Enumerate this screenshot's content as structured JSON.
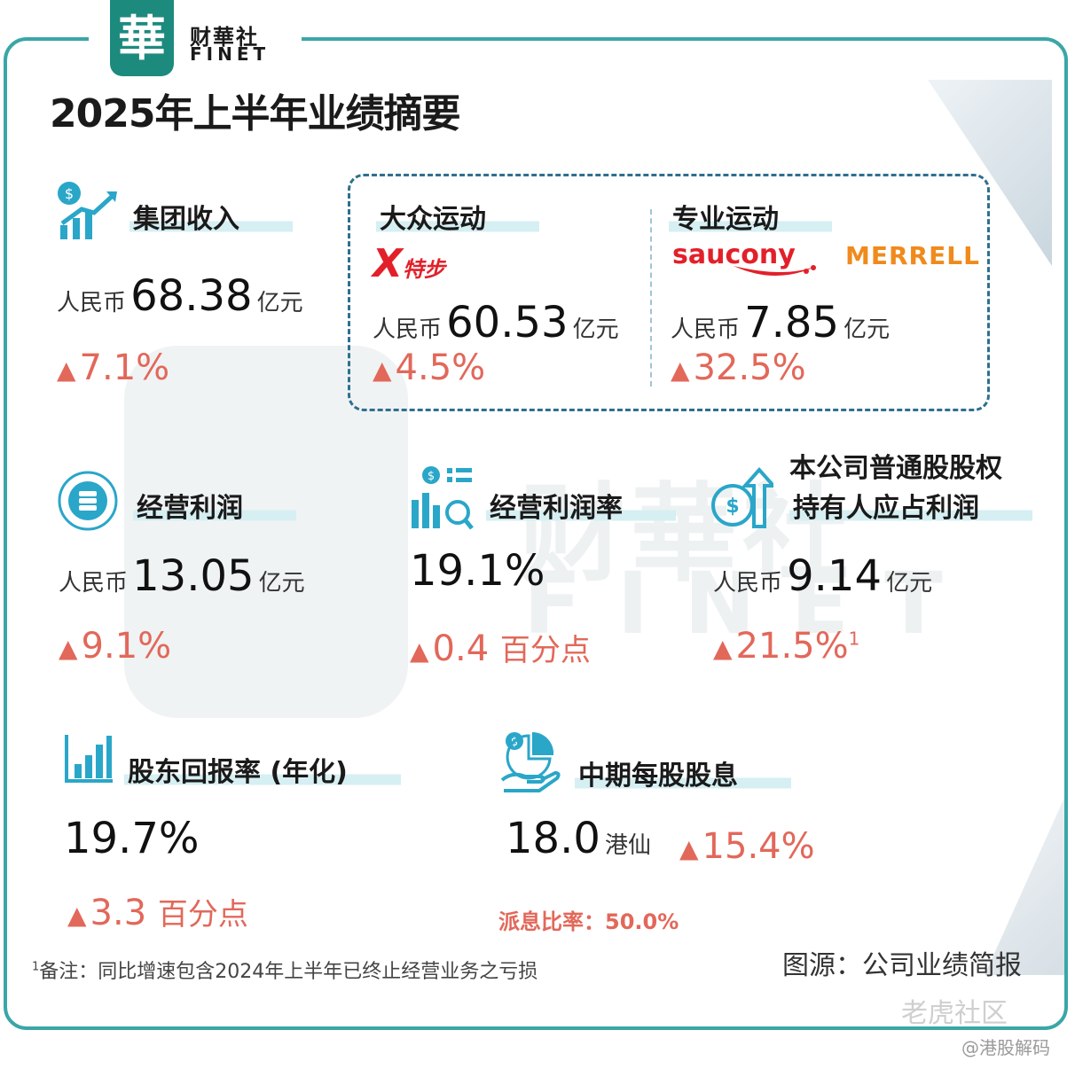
{
  "brand": {
    "logo_char": "華",
    "name_cn": "财華社",
    "name_en": "FINET"
  },
  "title": "2025年上半年业绩摘要",
  "revenue": {
    "heading": "集团收入",
    "prefix": "人民币",
    "value": "68.38",
    "unit": "亿元",
    "change": "7.1%"
  },
  "mass": {
    "heading": "大众运动",
    "brand_logo": "特步",
    "prefix": "人民币",
    "value": "60.53",
    "unit": "亿元",
    "change": "4.5%"
  },
  "pro": {
    "heading": "专业运动",
    "brand1": "saucony",
    "brand2": "MERRELL",
    "prefix": "人民币",
    "value": "7.85",
    "unit": "亿元",
    "change": "32.5%"
  },
  "op_profit": {
    "heading": "经营利润",
    "prefix": "人民币",
    "value": "13.05",
    "unit": "亿元",
    "change": "9.1%"
  },
  "op_margin": {
    "heading": "经营利润率",
    "value": "19.1%",
    "change": "0.4",
    "change_unit": "百分点"
  },
  "net_profit": {
    "heading_line1": "本公司普通股股权",
    "heading_line2": "持有人应占利润",
    "prefix": "人民币",
    "value": "9.14",
    "unit": "亿元",
    "change": "21.5%",
    "footnote_mark": "1"
  },
  "roe": {
    "heading": "股东回报率 (年化)",
    "value": "19.7%",
    "change": "3.3",
    "change_unit": "百分点"
  },
  "dividend": {
    "heading": "中期每股股息",
    "value": "18.0",
    "unit": "港仙",
    "change": "15.4%",
    "payout": "派息比率：50.0%"
  },
  "footnote": {
    "mark": "1",
    "text": "备注：同比增速包含2024年上半年已终止经营业务之亏损"
  },
  "source": "图源：公司业绩简报",
  "watermarks": {
    "corner": "老虎社区",
    "handle": "@港股解码"
  },
  "colors": {
    "accent": "#3aa6a7",
    "up": "#e2685a",
    "heading_bar": "#d6eff3"
  }
}
